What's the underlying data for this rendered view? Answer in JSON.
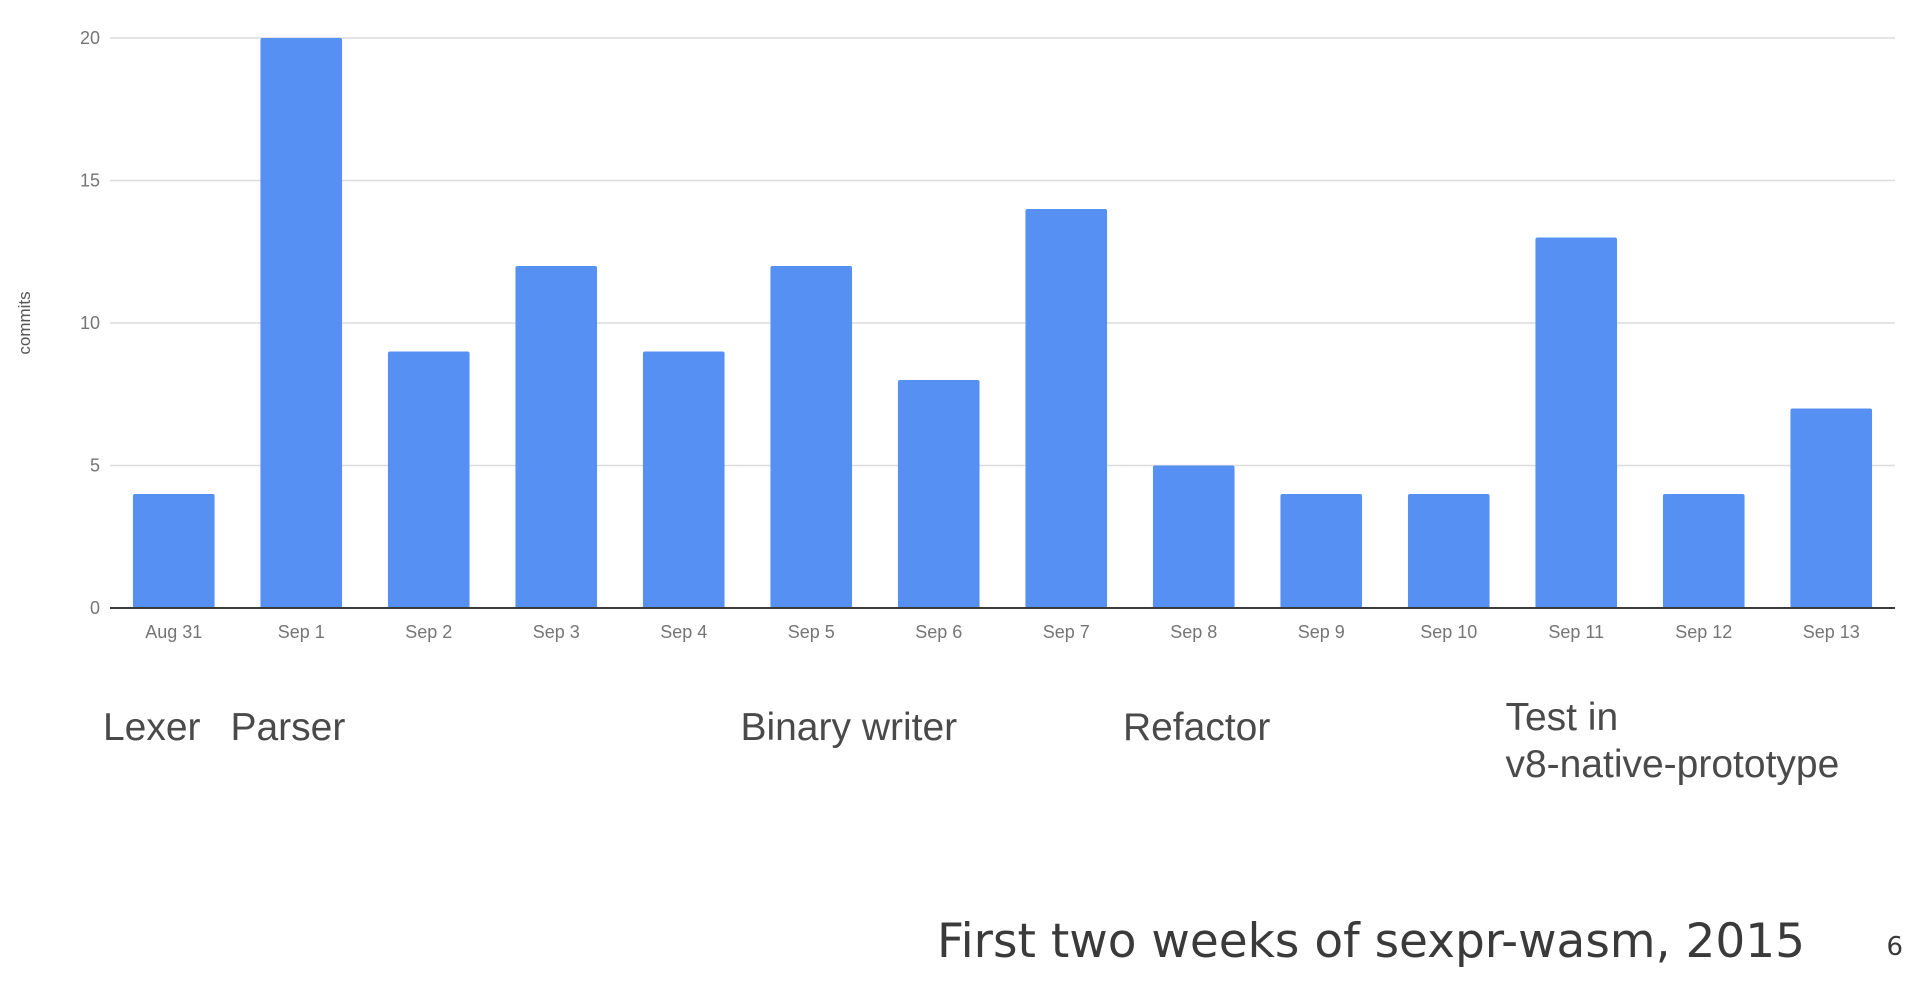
{
  "chart_data": {
    "type": "bar",
    "categories": [
      "Aug 31",
      "Sep 1",
      "Sep 2",
      "Sep 3",
      "Sep 4",
      "Sep 5",
      "Sep 6",
      "Sep 7",
      "Sep 8",
      "Sep 9",
      "Sep 10",
      "Sep 11",
      "Sep 12",
      "Sep 13"
    ],
    "values": [
      4,
      20,
      9,
      12,
      9,
      12,
      8,
      14,
      5,
      4,
      4,
      13,
      4,
      7
    ],
    "ylabel": "commits",
    "xlabel": "",
    "ylim": [
      0,
      20
    ],
    "yticks": [
      0,
      5,
      10,
      15,
      20
    ],
    "grid": true,
    "legend": "none",
    "colors": {
      "bar": "#5590f2",
      "grid": "#dcdcdc",
      "axis": "#3a3a3a",
      "tick_label": "#757575"
    }
  },
  "annotations": [
    {
      "category": "Aug 31",
      "lines": [
        "Lexer"
      ]
    },
    {
      "category": "Sep 1",
      "lines": [
        "Parser"
      ]
    },
    {
      "category": "Sep 5",
      "lines": [
        "Binary writer"
      ]
    },
    {
      "category": "Sep 8",
      "lines": [
        "Refactor"
      ]
    },
    {
      "category": "Sep 11",
      "lines": [
        "Test in",
        "v8-native-prototype"
      ]
    }
  ],
  "caption": "First two weeks of sexpr-wasm, 2015",
  "page_number": "6"
}
